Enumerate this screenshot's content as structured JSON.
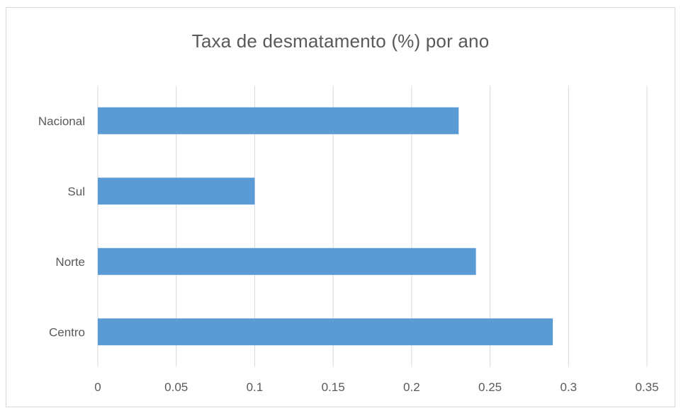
{
  "chart_data": {
    "type": "bar",
    "orientation": "horizontal",
    "title": "Taxa de desmatamento (%) por ano",
    "categories": [
      "Centro",
      "Norte",
      "Sul",
      "Nacional"
    ],
    "values": [
      0.29,
      0.241,
      0.1,
      0.23
    ],
    "xlim": [
      0,
      0.35
    ],
    "xticks": [
      "0",
      "0.05",
      "0.1",
      "0.15",
      "0.2",
      "0.25",
      "0.3",
      "0.35"
    ],
    "xtick_values": [
      0,
      0.05,
      0.1,
      0.15,
      0.2,
      0.25,
      0.3,
      0.35
    ],
    "xlabel": "",
    "ylabel": "",
    "grid": "vertical",
    "legend": "none",
    "bar_color": "#5b9bd5",
    "grid_color": "#d9d9d9",
    "text_color": "#595959"
  }
}
